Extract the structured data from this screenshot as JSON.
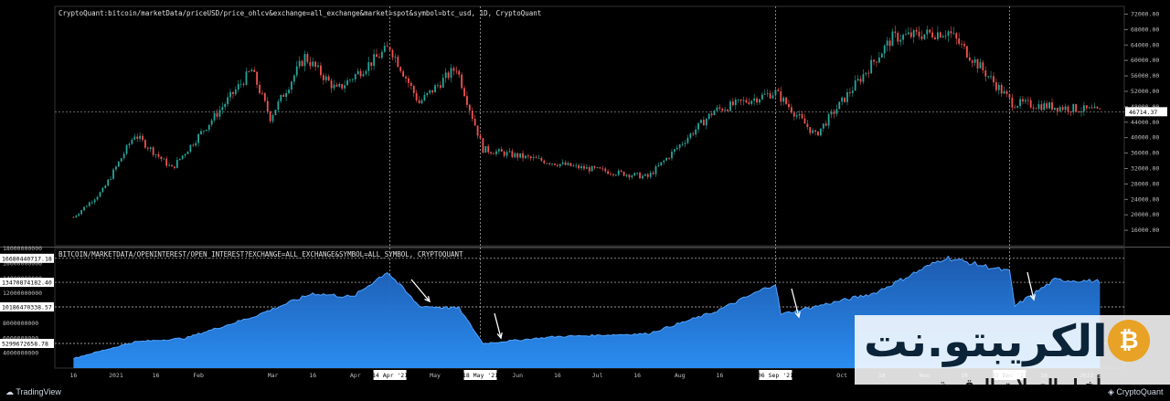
{
  "chart_data": [
    {
      "type": "candlestick",
      "title": "CryptoQuant:bitcoin/marketData/priceUSD/price_ohlcv&exchange=all_exchange&market=spot&symbol=btc_usd, 1D, CryptoQuant",
      "ylim": [
        12000,
        74000
      ],
      "ticks": [
        "72000.00",
        "68000.00",
        "64000.00",
        "60000.00",
        "56000.00",
        "52000.00",
        "48000.00",
        "44000.00",
        "40000.00",
        "36000.00",
        "32000.00",
        "28000.00",
        "24000.00",
        "20000.00",
        "16000.00"
      ],
      "last_price": "46714.37",
      "close_keypoints": [
        {
          "date": "2020-12-16",
          "close": 19400
        },
        {
          "date": "2020-12-27",
          "close": 26300
        },
        {
          "date": "2021-01-08",
          "close": 40800
        },
        {
          "date": "2021-01-22",
          "close": 32000
        },
        {
          "date": "2021-02-08",
          "close": 46300
        },
        {
          "date": "2021-02-21",
          "close": 57500
        },
        {
          "date": "2021-02-28",
          "close": 45200
        },
        {
          "date": "2021-03-13",
          "close": 61000
        },
        {
          "date": "2021-03-25",
          "close": 52300
        },
        {
          "date": "2021-04-14",
          "close": 63500
        },
        {
          "date": "2021-04-25",
          "close": 49000
        },
        {
          "date": "2021-05-09",
          "close": 58200
        },
        {
          "date": "2021-05-19",
          "close": 37000
        },
        {
          "date": "2021-06-22",
          "close": 32500
        },
        {
          "date": "2021-07-20",
          "close": 29800
        },
        {
          "date": "2021-08-14",
          "close": 47000
        },
        {
          "date": "2021-09-06",
          "close": 51800
        },
        {
          "date": "2021-09-21",
          "close": 40600
        },
        {
          "date": "2021-10-20",
          "close": 65900
        },
        {
          "date": "2021-11-10",
          "close": 67500
        },
        {
          "date": "2021-12-04",
          "close": 49000
        },
        {
          "date": "2021-12-28",
          "close": 47500
        },
        {
          "date": "2022-01-06",
          "close": 46714
        }
      ]
    },
    {
      "type": "area",
      "title": "BITCOIN/MARKETDATA/OPENINTEREST/OPEN_INTEREST?EXCHANGE=ALL_EXCHANGE&SYMBOL=ALL_SYMBOL, CRYPTOQUANT",
      "ylim": [
        2000000000,
        18000000000
      ],
      "ticks": [
        "18000000000",
        "16000000000",
        "14000000000",
        "12000000000",
        "10000000000",
        "8000000000",
        "6000000000",
        "4000000000"
      ],
      "markers": [
        "16680440717.18",
        "13470874182.40",
        "10186470338.57",
        "5299672658.78"
      ],
      "keypoints": [
        {
          "date": "2020-12-16",
          "oi": 3300000000
        },
        {
          "date": "2021-01-08",
          "oi": 5500000000
        },
        {
          "date": "2021-01-27",
          "oi": 6000000000
        },
        {
          "date": "2021-02-21",
          "oi": 8800000000
        },
        {
          "date": "2021-03-16",
          "oi": 12000000000
        },
        {
          "date": "2021-03-31",
          "oi": 11500000000
        },
        {
          "date": "2021-04-13",
          "oi": 14900000000
        },
        {
          "date": "2021-04-25",
          "oi": 10300000000
        },
        {
          "date": "2021-05-10",
          "oi": 10000000000
        },
        {
          "date": "2021-05-19",
          "oi": 5300000000
        },
        {
          "date": "2021-06-15",
          "oi": 6200000000
        },
        {
          "date": "2021-07-20",
          "oi": 6600000000
        },
        {
          "date": "2021-08-14",
          "oi": 9500000000
        },
        {
          "date": "2021-09-06",
          "oi": 13300000000
        },
        {
          "date": "2021-09-08",
          "oi": 9200000000
        },
        {
          "date": "2021-10-13",
          "oi": 12000000000
        },
        {
          "date": "2021-11-09",
          "oi": 16800000000
        },
        {
          "date": "2021-12-03",
          "oi": 14900000000
        },
        {
          "date": "2021-12-05",
          "oi": 10300000000
        },
        {
          "date": "2021-12-20",
          "oi": 13800000000
        },
        {
          "date": "2022-01-06",
          "oi": 13600000000
        }
      ]
    }
  ],
  "x_axis": {
    "ticks": [
      "16",
      "2021",
      "16",
      "Feb",
      "Mar",
      "16",
      "Apr",
      "May",
      "Jun",
      "16",
      "Jul",
      "16",
      "Aug",
      "16",
      "Oct",
      "16",
      "Nov",
      "16",
      "16",
      "2022"
    ],
    "highlights": [
      "14 Apr '21",
      "18 May '21",
      "06 Sep '21",
      "03 Dec '21"
    ]
  },
  "watermark": {
    "name": "الكريبتو.نت",
    "subtitle": "أخبار العملات الرقمية",
    "logo": "₿"
  },
  "footer": {
    "left": "TradingView",
    "right": "CryptoQuant"
  },
  "colors": {
    "up": "#26a69a",
    "down": "#ef5350",
    "area": "#2f80d6",
    "line": "#4fa3ff"
  }
}
